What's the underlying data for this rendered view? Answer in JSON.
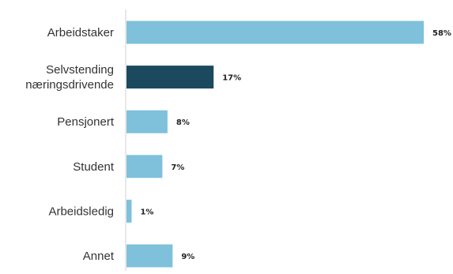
{
  "chart_data": {
    "type": "bar",
    "orientation": "horizontal",
    "categories": [
      [
        "Arbeidstaker"
      ],
      [
        "Selvstending",
        "næringsdrivende"
      ],
      [
        "Pensjonert"
      ],
      [
        "Student"
      ],
      [
        "Arbeidsledig"
      ],
      [
        "Annet"
      ]
    ],
    "values": [
      58,
      17,
      8,
      7,
      1,
      9
    ],
    "value_labels": [
      "58%",
      "17%",
      "8%",
      "7%",
      "1%",
      "9%"
    ],
    "value_unit": "%",
    "xlim": [
      0,
      58
    ],
    "grid": false,
    "legend": "none",
    "colors": [
      "#7fc0db",
      "#1b4a5e",
      "#7fc0db",
      "#7fc0db",
      "#7fc0db",
      "#7fc0db"
    ],
    "axis_color": "#d0d0d0"
  }
}
